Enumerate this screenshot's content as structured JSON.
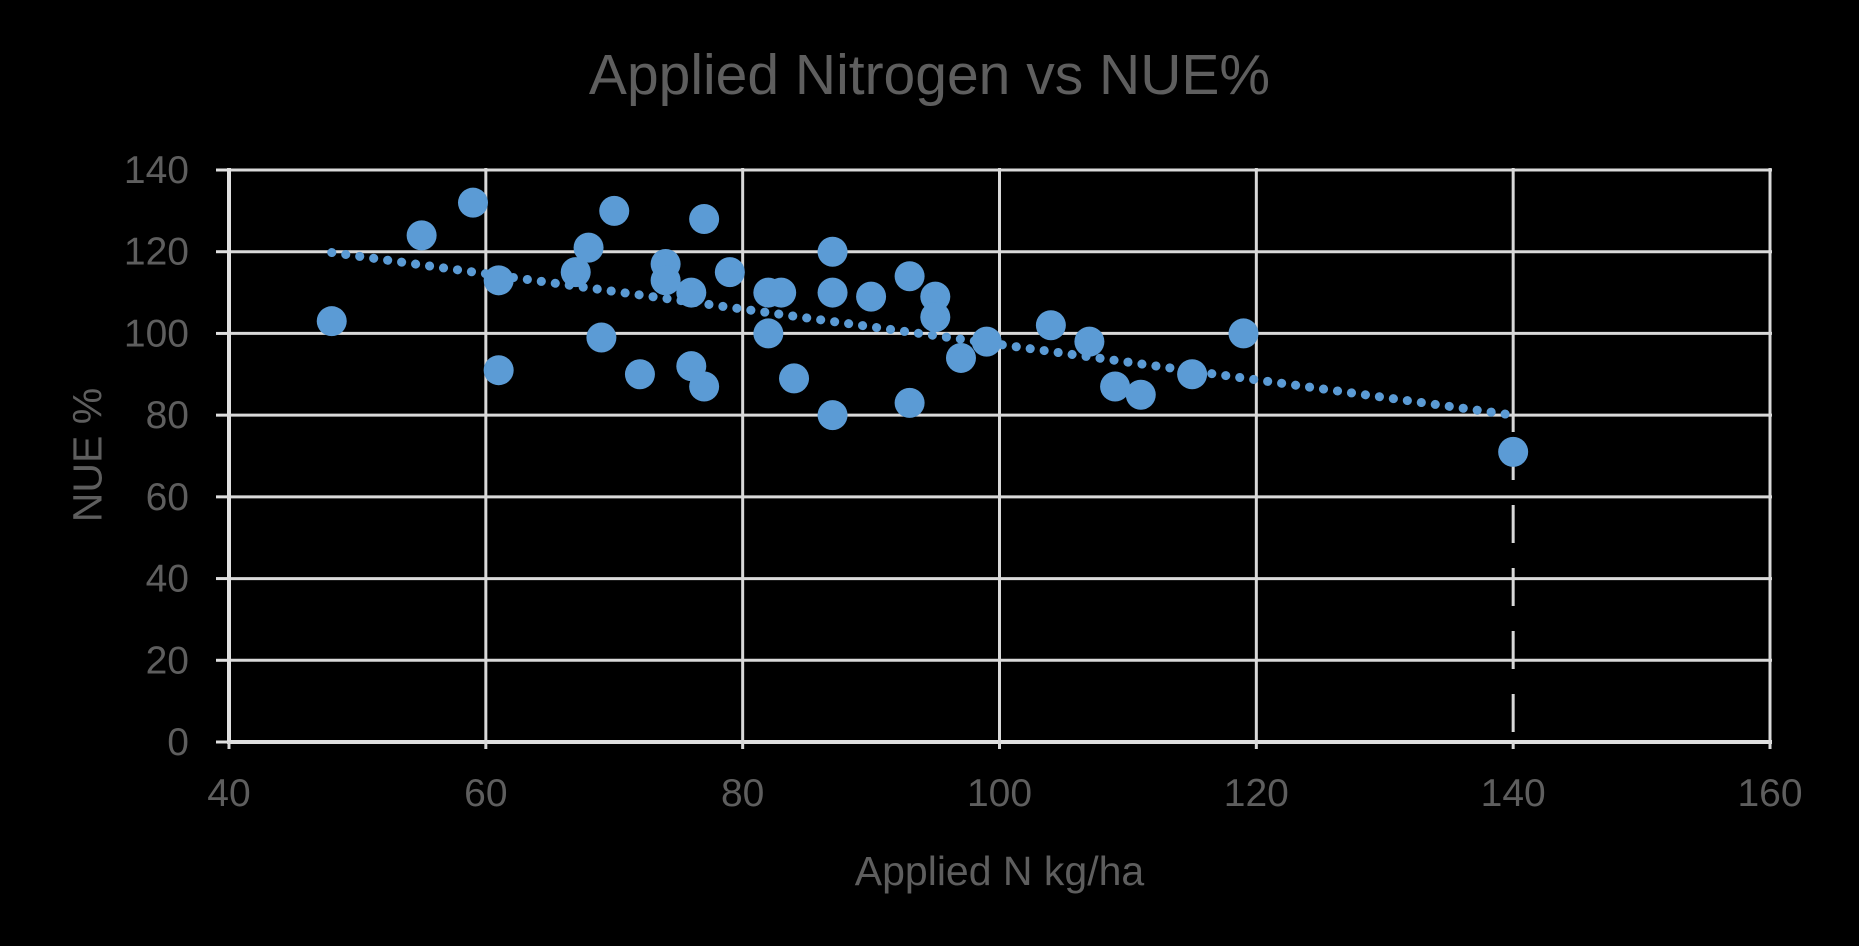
{
  "chart_data": {
    "type": "scatter",
    "title": "Applied Nitrogen vs NUE%",
    "xlabel": "Applied N kg/ha",
    "ylabel": "NUE %",
    "xlim": [
      40,
      160
    ],
    "ylim": [
      0,
      140
    ],
    "xticks": [
      40,
      60,
      80,
      100,
      120,
      140,
      160
    ],
    "yticks": [
      0,
      20,
      40,
      60,
      80,
      100,
      120,
      140
    ],
    "grid": true,
    "legend_position": "none",
    "points": [
      [
        48,
        103
      ],
      [
        55,
        124
      ],
      [
        59,
        132
      ],
      [
        61,
        113
      ],
      [
        61,
        91
      ],
      [
        67,
        115
      ],
      [
        68,
        121
      ],
      [
        69,
        99
      ],
      [
        70,
        130
      ],
      [
        72,
        90
      ],
      [
        74,
        117
      ],
      [
        74,
        113
      ],
      [
        76,
        110
      ],
      [
        76,
        92
      ],
      [
        77,
        128
      ],
      [
        77,
        87
      ],
      [
        79,
        115
      ],
      [
        82,
        110
      ],
      [
        82,
        100
      ],
      [
        83,
        110
      ],
      [
        84,
        89
      ],
      [
        87,
        120
      ],
      [
        87,
        110
      ],
      [
        87,
        80
      ],
      [
        90,
        109
      ],
      [
        93,
        114
      ],
      [
        93,
        83
      ],
      [
        95,
        109
      ],
      [
        95,
        104
      ],
      [
        97,
        94
      ],
      [
        99,
        98
      ],
      [
        104,
        102
      ],
      [
        107,
        98
      ],
      [
        109,
        87
      ],
      [
        111,
        85
      ],
      [
        115,
        90
      ],
      [
        119,
        100
      ],
      [
        140,
        71
      ]
    ],
    "trendline": {
      "style": "dotted",
      "x_start": 48,
      "y_start": 119.8,
      "x_end": 140,
      "y_end": 80
    },
    "colors": {
      "marker": "#5b9bd5",
      "trendline": "#5b9bd5",
      "gridline": "#d9d9d9",
      "axis_line": "#e0e0e0",
      "axis_text": "#5e5e5e",
      "background": "#000000"
    },
    "layout_hints": {
      "marker_radius_px": 15,
      "x140_gridline_lower_dashed": true
    }
  }
}
